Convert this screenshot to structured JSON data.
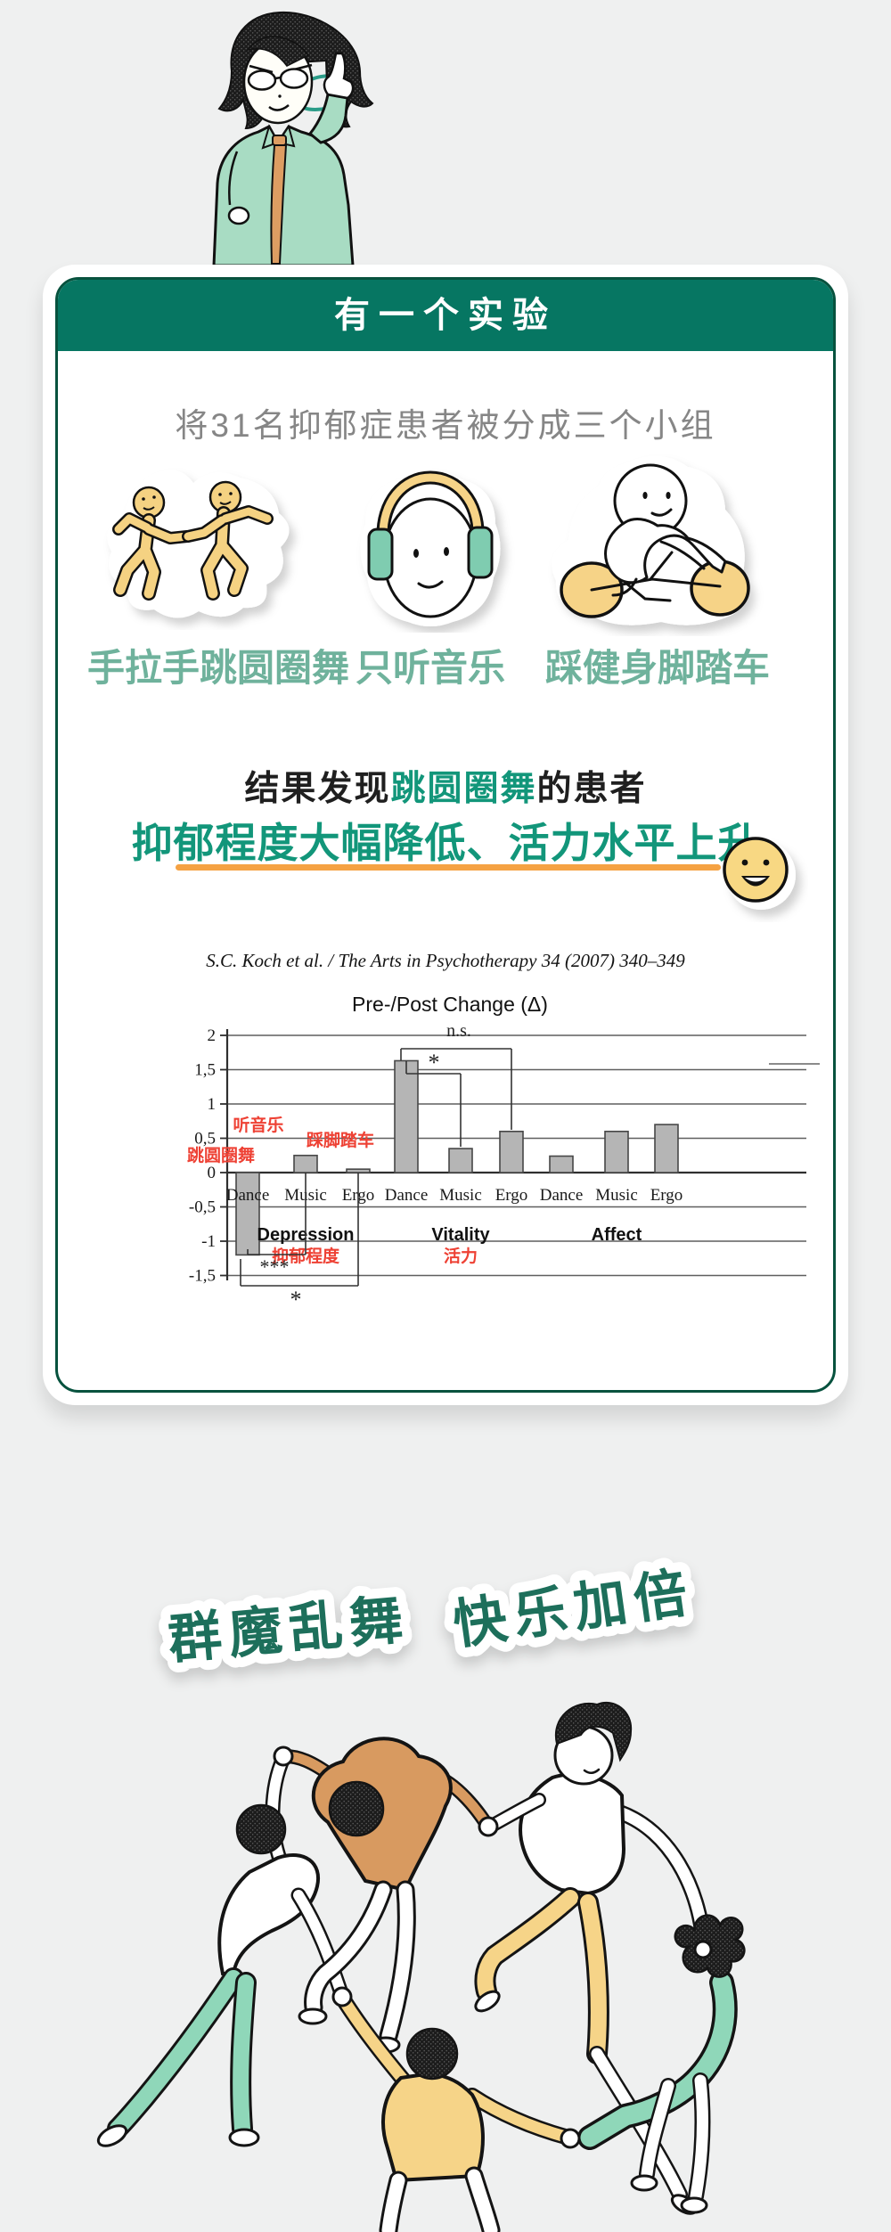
{
  "page": {
    "background": "#eff0f0"
  },
  "card": {
    "header_title": "有一个实验",
    "header_bg": "#067662",
    "border_color": "#07523e",
    "intro_text": "将31名抑郁症患者被分成三个小组",
    "groups": [
      {
        "icon": "circle-dance-icon",
        "label": "手拉手跳圆圈舞"
      },
      {
        "icon": "headphones-icon",
        "label": "只听音乐"
      },
      {
        "icon": "exercise-bike-icon",
        "label": "踩健身脚踏车"
      }
    ],
    "result": {
      "line1_prefix": "结果发现",
      "line1_highlight": "跳圆圈舞",
      "line1_suffix": "的患者",
      "line2": "抑郁程度大幅降低、活力水平上升",
      "highlight_color": "#12967a",
      "underline_color": "#f5a243"
    },
    "citation": "S.C. Koch et al. / The Arts in Psychotherapy 34 (2007) 340–349"
  },
  "chart_data": {
    "type": "bar",
    "title": "Pre-/Post Change (Δ)",
    "groups": [
      "Depression",
      "Vitality",
      "Affect"
    ],
    "group_annotations_cn": [
      "抑郁程度",
      "活力",
      ""
    ],
    "categories": [
      "Dance",
      "Music",
      "Ergo"
    ],
    "series": [
      {
        "group": "Depression",
        "values": [
          -1.2,
          0.25,
          0.05
        ]
      },
      {
        "group": "Vitality",
        "values": [
          1.63,
          0.35,
          0.6
        ]
      },
      {
        "group": "Affect",
        "values": [
          0.24,
          0.6,
          0.7
        ]
      }
    ],
    "bar_annotations_cn": [
      "跳圆圈舞",
      "听音乐",
      "踩脚踏车"
    ],
    "significance": [
      {
        "label": "*",
        "between": "Vitality: Dance vs Music"
      },
      {
        "label": "n.s.",
        "between": "Vitality: Dance vs Ergo"
      },
      {
        "label": "***",
        "between": "Depression: Dance vs Music"
      },
      {
        "label": "*",
        "between": "Depression: Dance vs Ergo"
      }
    ],
    "y_ticks": [
      "2",
      "1,5",
      "1",
      "0,5",
      "0",
      "-0,5",
      "-1",
      "-1,5"
    ],
    "ylim": [
      -1.5,
      2
    ],
    "grid": true,
    "bar_color": "#b5b5b5",
    "bar_border_color": "#474747",
    "annotation_color": "#ee4134"
  },
  "footer": {
    "sticker_text_1": "群魔乱舞",
    "sticker_text_2": "快乐加倍",
    "text_color": "#1d6f5b"
  },
  "palette": {
    "mint_shirt": "#a8dcc3",
    "mint_pants": "#8fd7b9",
    "yellow": "#f6d488",
    "tan_orange": "#d89a60",
    "tie_orange": "#dd9d62",
    "swirl_teal": "#2a9c88",
    "smiley_yellow": "#f8d883"
  }
}
